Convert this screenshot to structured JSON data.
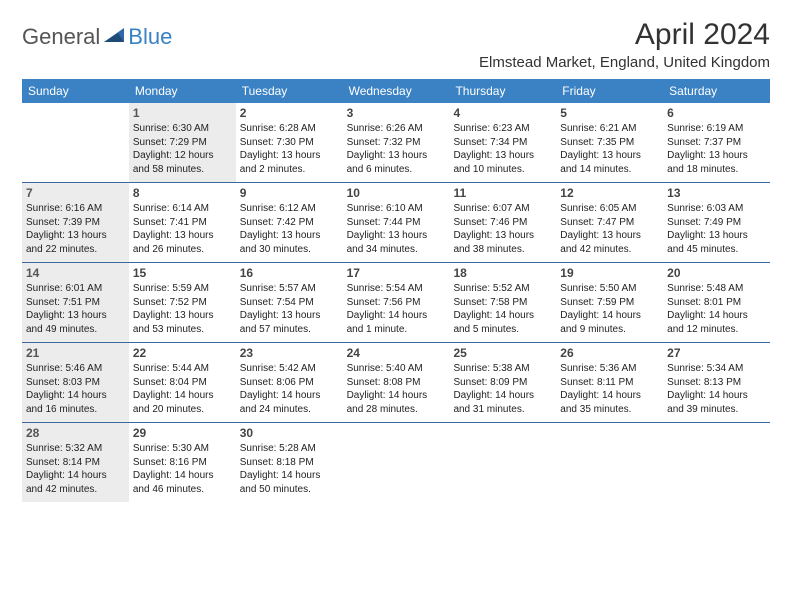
{
  "brand": {
    "part1": "General",
    "part2": "Blue"
  },
  "title": "April 2024",
  "location": "Elmstead Market, England, United Kingdom",
  "colors": {
    "accent": "#3a82c4",
    "shaded_bg": "#ececec",
    "rule": "#3a6a9a",
    "text": "#222222"
  },
  "dayHeaders": [
    "Sunday",
    "Monday",
    "Tuesday",
    "Wednesday",
    "Thursday",
    "Friday",
    "Saturday"
  ],
  "weeks": [
    [
      {
        "day": "",
        "shaded": false,
        "lines": [
          "",
          "",
          "",
          ""
        ]
      },
      {
        "day": "1",
        "shaded": true,
        "lines": [
          "Sunrise: 6:30 AM",
          "Sunset: 7:29 PM",
          "Daylight: 12 hours",
          "and 58 minutes."
        ]
      },
      {
        "day": "2",
        "shaded": false,
        "lines": [
          "Sunrise: 6:28 AM",
          "Sunset: 7:30 PM",
          "Daylight: 13 hours",
          "and 2 minutes."
        ]
      },
      {
        "day": "3",
        "shaded": false,
        "lines": [
          "Sunrise: 6:26 AM",
          "Sunset: 7:32 PM",
          "Daylight: 13 hours",
          "and 6 minutes."
        ]
      },
      {
        "day": "4",
        "shaded": false,
        "lines": [
          "Sunrise: 6:23 AM",
          "Sunset: 7:34 PM",
          "Daylight: 13 hours",
          "and 10 minutes."
        ]
      },
      {
        "day": "5",
        "shaded": false,
        "lines": [
          "Sunrise: 6:21 AM",
          "Sunset: 7:35 PM",
          "Daylight: 13 hours",
          "and 14 minutes."
        ]
      },
      {
        "day": "6",
        "shaded": false,
        "lines": [
          "Sunrise: 6:19 AM",
          "Sunset: 7:37 PM",
          "Daylight: 13 hours",
          "and 18 minutes."
        ]
      }
    ],
    [
      {
        "day": "7",
        "shaded": true,
        "lines": [
          "Sunrise: 6:16 AM",
          "Sunset: 7:39 PM",
          "Daylight: 13 hours",
          "and 22 minutes."
        ]
      },
      {
        "day": "8",
        "shaded": false,
        "lines": [
          "Sunrise: 6:14 AM",
          "Sunset: 7:41 PM",
          "Daylight: 13 hours",
          "and 26 minutes."
        ]
      },
      {
        "day": "9",
        "shaded": false,
        "lines": [
          "Sunrise: 6:12 AM",
          "Sunset: 7:42 PM",
          "Daylight: 13 hours",
          "and 30 minutes."
        ]
      },
      {
        "day": "10",
        "shaded": false,
        "lines": [
          "Sunrise: 6:10 AM",
          "Sunset: 7:44 PM",
          "Daylight: 13 hours",
          "and 34 minutes."
        ]
      },
      {
        "day": "11",
        "shaded": false,
        "lines": [
          "Sunrise: 6:07 AM",
          "Sunset: 7:46 PM",
          "Daylight: 13 hours",
          "and 38 minutes."
        ]
      },
      {
        "day": "12",
        "shaded": false,
        "lines": [
          "Sunrise: 6:05 AM",
          "Sunset: 7:47 PM",
          "Daylight: 13 hours",
          "and 42 minutes."
        ]
      },
      {
        "day": "13",
        "shaded": false,
        "lines": [
          "Sunrise: 6:03 AM",
          "Sunset: 7:49 PM",
          "Daylight: 13 hours",
          "and 45 minutes."
        ]
      }
    ],
    [
      {
        "day": "14",
        "shaded": true,
        "lines": [
          "Sunrise: 6:01 AM",
          "Sunset: 7:51 PM",
          "Daylight: 13 hours",
          "and 49 minutes."
        ]
      },
      {
        "day": "15",
        "shaded": false,
        "lines": [
          "Sunrise: 5:59 AM",
          "Sunset: 7:52 PM",
          "Daylight: 13 hours",
          "and 53 minutes."
        ]
      },
      {
        "day": "16",
        "shaded": false,
        "lines": [
          "Sunrise: 5:57 AM",
          "Sunset: 7:54 PM",
          "Daylight: 13 hours",
          "and 57 minutes."
        ]
      },
      {
        "day": "17",
        "shaded": false,
        "lines": [
          "Sunrise: 5:54 AM",
          "Sunset: 7:56 PM",
          "Daylight: 14 hours",
          "and 1 minute."
        ]
      },
      {
        "day": "18",
        "shaded": false,
        "lines": [
          "Sunrise: 5:52 AM",
          "Sunset: 7:58 PM",
          "Daylight: 14 hours",
          "and 5 minutes."
        ]
      },
      {
        "day": "19",
        "shaded": false,
        "lines": [
          "Sunrise: 5:50 AM",
          "Sunset: 7:59 PM",
          "Daylight: 14 hours",
          "and 9 minutes."
        ]
      },
      {
        "day": "20",
        "shaded": false,
        "lines": [
          "Sunrise: 5:48 AM",
          "Sunset: 8:01 PM",
          "Daylight: 14 hours",
          "and 12 minutes."
        ]
      }
    ],
    [
      {
        "day": "21",
        "shaded": true,
        "lines": [
          "Sunrise: 5:46 AM",
          "Sunset: 8:03 PM",
          "Daylight: 14 hours",
          "and 16 minutes."
        ]
      },
      {
        "day": "22",
        "shaded": false,
        "lines": [
          "Sunrise: 5:44 AM",
          "Sunset: 8:04 PM",
          "Daylight: 14 hours",
          "and 20 minutes."
        ]
      },
      {
        "day": "23",
        "shaded": false,
        "lines": [
          "Sunrise: 5:42 AM",
          "Sunset: 8:06 PM",
          "Daylight: 14 hours",
          "and 24 minutes."
        ]
      },
      {
        "day": "24",
        "shaded": false,
        "lines": [
          "Sunrise: 5:40 AM",
          "Sunset: 8:08 PM",
          "Daylight: 14 hours",
          "and 28 minutes."
        ]
      },
      {
        "day": "25",
        "shaded": false,
        "lines": [
          "Sunrise: 5:38 AM",
          "Sunset: 8:09 PM",
          "Daylight: 14 hours",
          "and 31 minutes."
        ]
      },
      {
        "day": "26",
        "shaded": false,
        "lines": [
          "Sunrise: 5:36 AM",
          "Sunset: 8:11 PM",
          "Daylight: 14 hours",
          "and 35 minutes."
        ]
      },
      {
        "day": "27",
        "shaded": false,
        "lines": [
          "Sunrise: 5:34 AM",
          "Sunset: 8:13 PM",
          "Daylight: 14 hours",
          "and 39 minutes."
        ]
      }
    ],
    [
      {
        "day": "28",
        "shaded": true,
        "lines": [
          "Sunrise: 5:32 AM",
          "Sunset: 8:14 PM",
          "Daylight: 14 hours",
          "and 42 minutes."
        ]
      },
      {
        "day": "29",
        "shaded": false,
        "lines": [
          "Sunrise: 5:30 AM",
          "Sunset: 8:16 PM",
          "Daylight: 14 hours",
          "and 46 minutes."
        ]
      },
      {
        "day": "30",
        "shaded": false,
        "lines": [
          "Sunrise: 5:28 AM",
          "Sunset: 8:18 PM",
          "Daylight: 14 hours",
          "and 50 minutes."
        ]
      },
      {
        "day": "",
        "shaded": false,
        "lines": [
          "",
          "",
          "",
          ""
        ]
      },
      {
        "day": "",
        "shaded": false,
        "lines": [
          "",
          "",
          "",
          ""
        ]
      },
      {
        "day": "",
        "shaded": false,
        "lines": [
          "",
          "",
          "",
          ""
        ]
      },
      {
        "day": "",
        "shaded": false,
        "lines": [
          "",
          "",
          "",
          ""
        ]
      }
    ]
  ]
}
